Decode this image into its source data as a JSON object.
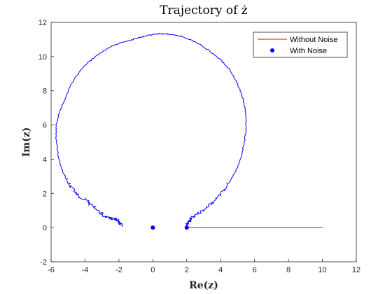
{
  "chart_data": {
    "type": "line",
    "title": "Trajectory of ż",
    "xlabel": "Re(z)",
    "ylabel": "Im(z)",
    "xlim": [
      -6,
      12
    ],
    "ylim": [
      -2,
      12
    ],
    "xticks": [
      -6,
      -4,
      -2,
      0,
      2,
      4,
      6,
      8,
      10,
      12
    ],
    "yticks": [
      -2,
      0,
      2,
      4,
      6,
      8,
      10,
      12
    ],
    "grid": false,
    "legend_position": "top-right",
    "series": [
      {
        "name": "Without Noise",
        "color": "#ff0000",
        "style": "line",
        "x": [
          2,
          10
        ],
        "y": [
          0,
          0
        ]
      },
      {
        "name": "With Noise",
        "color": "#0000ff",
        "style": "line",
        "markers": [
          [
            0,
            0
          ],
          [
            2,
            0
          ]
        ],
        "x": [
          2,
          2.1,
          2.3,
          2.6,
          3.0,
          3.5,
          4.0,
          4.5,
          4.9,
          5.2,
          5.4,
          5.5,
          5.5,
          5.4,
          5.2,
          4.9,
          4.5,
          4.0,
          3.4,
          2.8,
          2.2,
          1.6,
          1.0,
          0.5,
          0.0,
          -0.5,
          -1.0,
          -1.6,
          -2.2,
          -2.8,
          -3.4,
          -4.0,
          -4.5,
          -4.9,
          -5.2,
          -5.5,
          -5.7,
          -5.7,
          -5.6,
          -5.4,
          -5.1,
          -4.7,
          -4.3,
          -3.9,
          -3.5,
          -3.0,
          -2.6,
          -2.2,
          -2.0,
          -1.9,
          -1.85
        ],
        "y": [
          0.1,
          0.35,
          0.55,
          0.8,
          1.0,
          1.4,
          2.0,
          2.6,
          3.3,
          4.1,
          5.0,
          5.7,
          6.5,
          7.2,
          7.9,
          8.6,
          9.3,
          9.8,
          10.3,
          10.7,
          11.0,
          11.2,
          11.3,
          11.35,
          11.3,
          11.2,
          11.05,
          10.9,
          10.7,
          10.4,
          10.0,
          9.5,
          8.9,
          8.2,
          7.5,
          6.8,
          6.0,
          5.2,
          4.3,
          3.5,
          2.8,
          2.2,
          1.8,
          1.6,
          1.2,
          0.8,
          0.55,
          0.5,
          0.35,
          0.25,
          0.1
        ]
      }
    ]
  }
}
